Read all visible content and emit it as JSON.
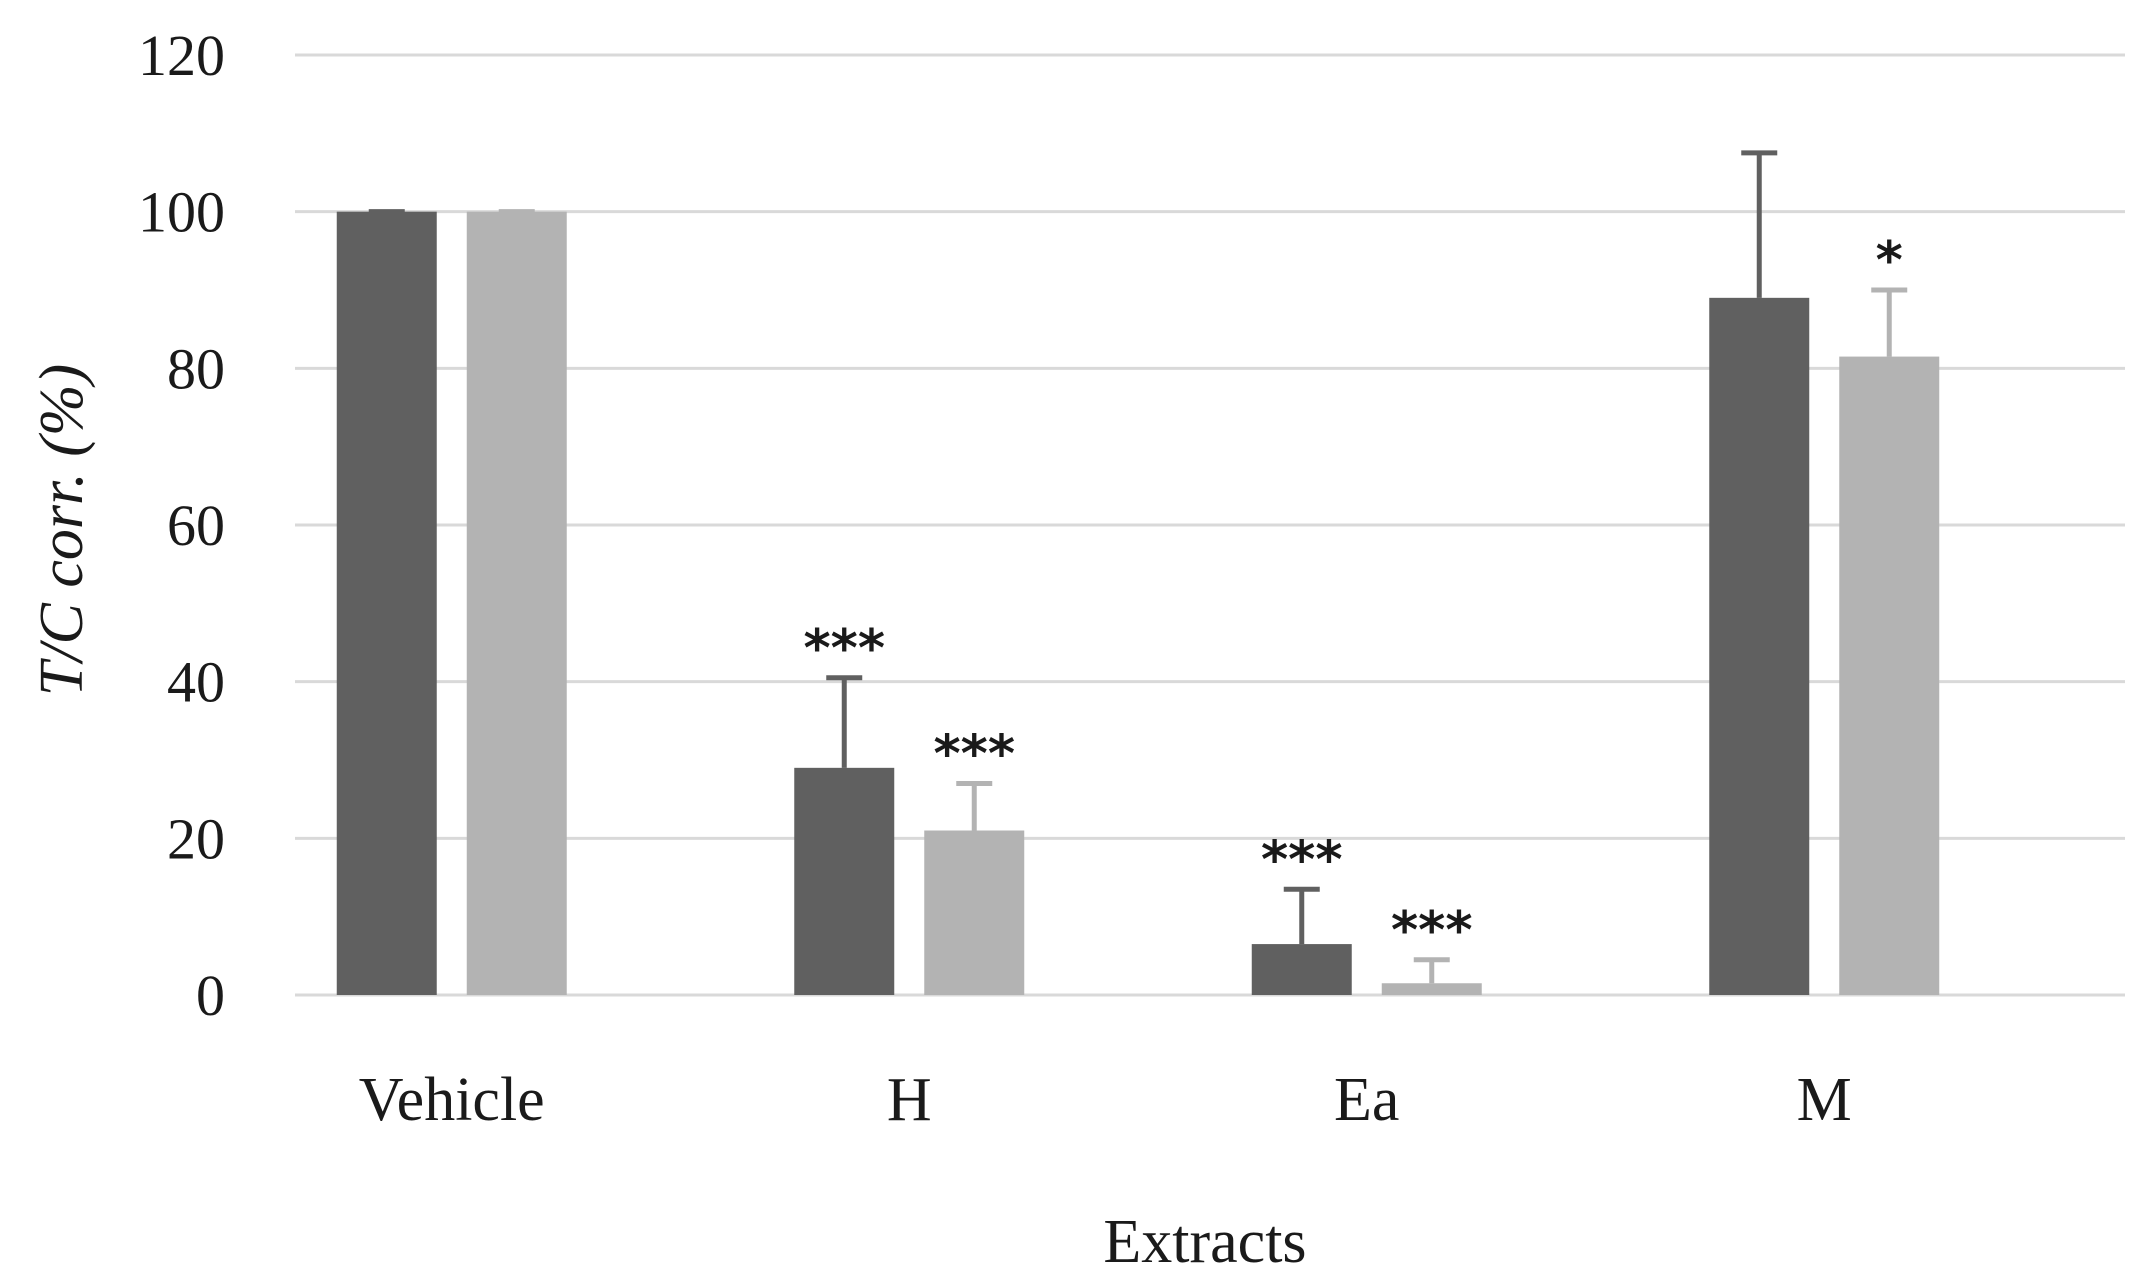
{
  "chart_data": {
    "type": "bar",
    "title": "",
    "xlabel": "Extracts",
    "ylabel": "T/C corr. (%)",
    "ylim": [
      0,
      120
    ],
    "yticks": [
      0,
      20,
      40,
      60,
      80,
      100,
      120
    ],
    "grid": true,
    "categories": [
      "Vehicle",
      "H",
      "Ea",
      "M"
    ],
    "series": [
      {
        "color": "#606060",
        "values": [
          100,
          29,
          6.5,
          89
        ],
        "errors": [
          0,
          11.5,
          7,
          18.5
        ],
        "significance": [
          "",
          "***",
          "***",
          ""
        ]
      },
      {
        "color": "#b3b3b3",
        "values": [
          100,
          21,
          1.5,
          81.5
        ],
        "errors": [
          0,
          6,
          3,
          8.5
        ],
        "significance": [
          "",
          "***",
          "***",
          "*"
        ]
      }
    ]
  }
}
